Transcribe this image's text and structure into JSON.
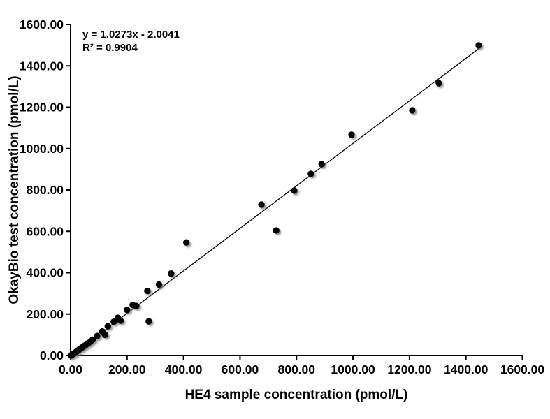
{
  "figure": {
    "background": "#ffffff",
    "marker_color": "#000000",
    "line_color": "#000000"
  },
  "chart_data": {
    "type": "scatter",
    "title": "",
    "xlabel": "HE4 sample concentration (pmol/L)",
    "ylabel": "OkayBio test concentration (pmol/L)",
    "xlim": [
      0,
      1600
    ],
    "ylim": [
      0,
      1600
    ],
    "grid": false,
    "legend": false,
    "xticks": [
      0,
      200,
      400,
      600,
      800,
      1000,
      1200,
      1400,
      1600
    ],
    "yticks": [
      0,
      200,
      400,
      600,
      800,
      1000,
      1200,
      1400,
      1600
    ],
    "xtick_labels": [
      "0.00",
      "200.00",
      "400.00",
      "600.00",
      "800.00",
      "1000.00",
      "1200.00",
      "1400.00",
      "1600.00"
    ],
    "ytick_labels": [
      "0.00",
      "200.00",
      "400.00",
      "600.00",
      "800.00",
      "1000.00",
      "1200.00",
      "1400.00",
      "1600.00"
    ],
    "annotation_line1": "y = 1.0273x - 2.0041",
    "annotation_line2": "R² = 0.9904",
    "trendline": {
      "slope": 1.0273,
      "intercept": -2.0041,
      "r_squared": 0.9904,
      "x_start": 0,
      "x_end": 1445
    },
    "points": [
      [
        2,
        0
      ],
      [
        5,
        3
      ],
      [
        8,
        6
      ],
      [
        11,
        9
      ],
      [
        14,
        12
      ],
      [
        17,
        15
      ],
      [
        20,
        18
      ],
      [
        24,
        22
      ],
      [
        28,
        26
      ],
      [
        32,
        30
      ],
      [
        36,
        34
      ],
      [
        41,
        39
      ],
      [
        46,
        44
      ],
      [
        52,
        49
      ],
      [
        58,
        55
      ],
      [
        64,
        61
      ],
      [
        71,
        68
      ],
      [
        78,
        76
      ],
      [
        94,
        94
      ],
      [
        112,
        116
      ],
      [
        122,
        100
      ],
      [
        132,
        141
      ],
      [
        153,
        163
      ],
      [
        167,
        182
      ],
      [
        177,
        168
      ],
      [
        200,
        220
      ],
      [
        220,
        244
      ],
      [
        233,
        239
      ],
      [
        272,
        312
      ],
      [
        277,
        165
      ],
      [
        313,
        343
      ],
      [
        356,
        396
      ],
      [
        410,
        546
      ],
      [
        676,
        729
      ],
      [
        728,
        604
      ],
      [
        792,
        797
      ],
      [
        851,
        878
      ],
      [
        889,
        925
      ],
      [
        995,
        1067
      ],
      [
        1210,
        1185
      ],
      [
        1304,
        1316
      ],
      [
        1445,
        1499
      ]
    ]
  }
}
